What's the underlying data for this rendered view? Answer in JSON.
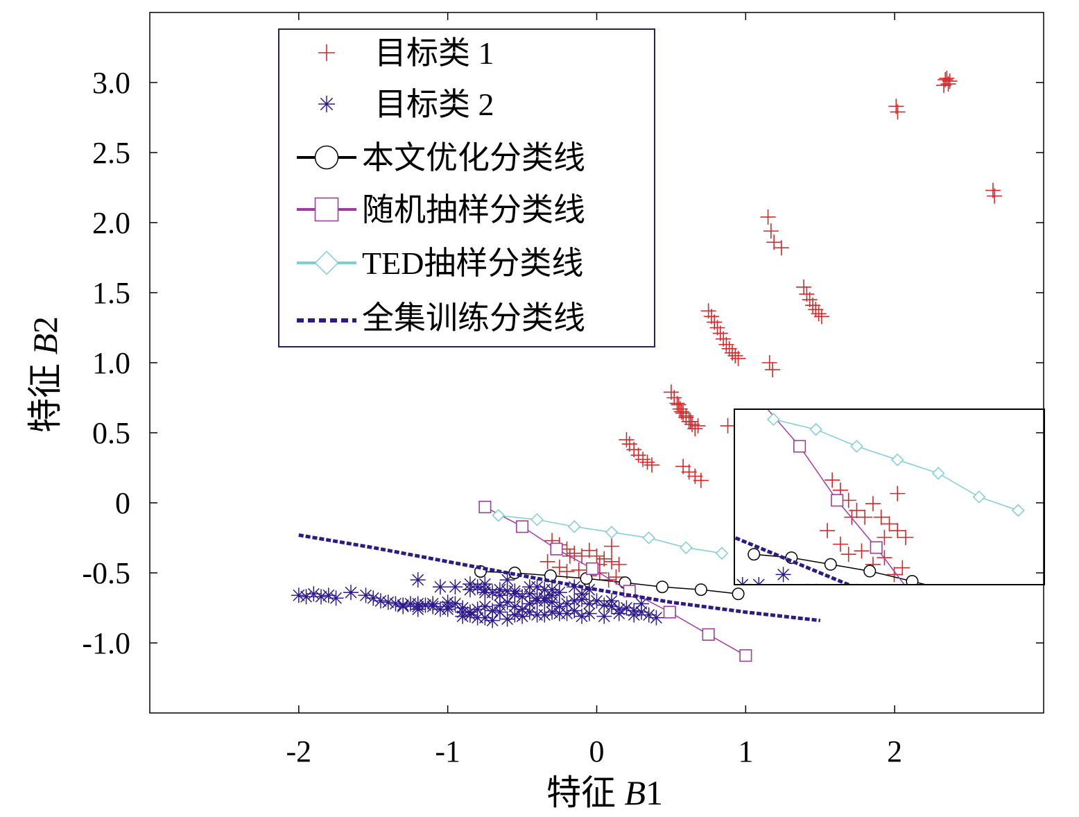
{
  "chart_data": {
    "type": "scatter",
    "title": "",
    "xlabel": {
      "prefix": "特征 ",
      "var": "B",
      "sub": "1"
    },
    "ylabel": {
      "prefix": "特征 ",
      "var": "B",
      "sub": "2"
    },
    "xlim": [
      -3.0,
      3.0
    ],
    "ylim": [
      -1.5,
      3.5
    ],
    "xticks": [
      {
        "value": -2,
        "label": "-2"
      },
      {
        "value": -1,
        "label": "-1"
      },
      {
        "value": 0,
        "label": "0"
      },
      {
        "value": 1,
        "label": "1"
      },
      {
        "value": 2,
        "label": "2"
      }
    ],
    "yticks": [
      {
        "value": -1.0,
        "label": "-1.0"
      },
      {
        "value": -0.5,
        "label": "-0.5"
      },
      {
        "value": 0,
        "label": "0"
      },
      {
        "value": 0.5,
        "label": "0.5"
      },
      {
        "value": 1.0,
        "label": "1.0"
      },
      {
        "value": 1.5,
        "label": "1.5"
      },
      {
        "value": 2.0,
        "label": "2.0"
      },
      {
        "value": 2.5,
        "label": "2.5"
      },
      {
        "value": 3.0,
        "label": "3.0"
      }
    ],
    "grid": false,
    "legend_position": "top-left",
    "legend": [
      {
        "label": "目标类 1",
        "marker": "plus",
        "color": "#d62728"
      },
      {
        "label": "目标类 2",
        "marker": "star",
        "color": "#2e1a87"
      },
      {
        "label": "本文优化分类线",
        "marker": "circle",
        "color": "#000000"
      },
      {
        "label": "随机抽样分类线",
        "marker": "square",
        "color": "#a23aa6"
      },
      {
        "label": "TED抽样分类线",
        "marker": "diamond",
        "color": "#7ecfd0"
      },
      {
        "label": "全集训练分类线",
        "marker": "dashed",
        "color": "#2e1a87"
      }
    ],
    "series": [
      {
        "name": "目标类 1",
        "kind": "scatter",
        "marker": "plus",
        "color": "#d62728",
        "x": [
          2.35,
          2.37,
          2.36,
          2.34,
          2.33,
          2.01,
          2.02,
          2.66,
          2.67,
          1.15,
          1.17,
          1.19,
          1.24,
          1.39,
          1.41,
          1.43,
          1.45,
          1.47,
          1.49,
          1.51,
          0.75,
          0.77,
          0.79,
          0.81,
          0.83,
          0.85,
          0.87,
          0.89,
          0.91,
          0.93,
          0.95,
          1.16,
          1.18,
          0.5,
          0.52,
          0.54,
          0.56,
          0.58,
          0.6,
          0.62,
          0.64,
          0.66,
          0.55,
          0.57,
          0.6,
          0.63,
          0.68,
          0.2,
          0.22,
          0.25,
          0.28,
          0.31,
          0.34,
          0.37,
          0.58,
          0.62,
          0.66,
          0.7,
          0.88,
          -0.3,
          -0.25,
          -0.2,
          -0.15,
          -0.1,
          -0.05,
          0.0,
          0.05,
          0.1,
          0.15,
          -0.25,
          -0.2,
          -0.12,
          -0.05,
          0.02,
          0.08,
          0.13,
          -0.33,
          -0.18,
          0.02,
          0.1
        ],
        "y": [
          3.03,
          3.01,
          2.99,
          3.02,
          2.98,
          2.83,
          2.79,
          2.23,
          2.19,
          2.04,
          1.94,
          1.86,
          1.82,
          1.54,
          1.49,
          1.45,
          1.41,
          1.38,
          1.35,
          1.33,
          1.37,
          1.33,
          1.29,
          1.25,
          1.21,
          1.17,
          1.13,
          1.1,
          1.07,
          1.05,
          1.03,
          1.0,
          0.95,
          0.79,
          0.75,
          0.71,
          0.67,
          0.64,
          0.61,
          0.58,
          0.56,
          0.53,
          0.7,
          0.65,
          0.62,
          0.58,
          0.55,
          0.45,
          0.42,
          0.38,
          0.34,
          0.31,
          0.29,
          0.27,
          0.26,
          0.22,
          0.19,
          0.16,
          0.55,
          -0.27,
          -0.3,
          -0.33,
          -0.36,
          -0.38,
          -0.34,
          -0.38,
          -0.4,
          -0.42,
          -0.44,
          -0.46,
          -0.49,
          -0.48,
          -0.52,
          -0.5,
          -0.55,
          -0.53,
          -0.42,
          -0.38,
          -0.44,
          -0.31
        ]
      },
      {
        "name": "目标类 2",
        "kind": "scatter",
        "marker": "star",
        "color": "#2e1a87",
        "x": [
          -2.0,
          -1.95,
          -1.9,
          -1.85,
          -1.8,
          -1.75,
          -1.65,
          -1.55,
          -1.5,
          -1.45,
          -1.4,
          -1.35,
          -1.3,
          -1.25,
          -1.2,
          -1.15,
          -1.1,
          -1.05,
          -1.0,
          -0.95,
          -0.9,
          -0.85,
          -0.8,
          -0.75,
          -0.7,
          -0.65,
          -0.6,
          -0.55,
          -0.5,
          -0.45,
          -0.4,
          -0.35,
          -0.3,
          -0.25,
          -0.2,
          -0.15,
          -0.1,
          -0.05,
          0.0,
          0.05,
          0.1,
          0.15,
          0.2,
          0.25,
          0.3,
          0.35,
          0.4,
          -1.3,
          -1.2,
          -1.1,
          -1.0,
          -0.9,
          -0.85,
          -0.75,
          -0.65,
          -0.55,
          -0.45,
          -0.35,
          -0.25,
          -0.15,
          -0.05,
          0.05,
          0.15,
          0.25,
          -1.2,
          -1.0,
          -0.9,
          -0.8,
          -0.7,
          -0.6,
          -0.5,
          -0.4,
          -0.3,
          -0.2,
          -0.1,
          -0.95,
          -0.85,
          -0.75,
          -0.65,
          -0.55,
          -0.45,
          -0.35,
          -0.25,
          -0.15,
          -0.05,
          -0.85,
          -0.8,
          -0.75,
          -0.7,
          -0.65,
          -0.6,
          -0.55,
          -0.5,
          -0.45,
          -0.4,
          -0.35,
          -0.3,
          -1.2,
          -1.05,
          -0.75,
          -0.6,
          -0.4,
          -0.3,
          -0.1,
          0.1,
          0.3
        ],
        "y": [
          -0.66,
          -0.67,
          -0.65,
          -0.67,
          -0.66,
          -0.68,
          -0.64,
          -0.66,
          -0.68,
          -0.7,
          -0.71,
          -0.72,
          -0.73,
          -0.72,
          -0.74,
          -0.73,
          -0.72,
          -0.76,
          -0.74,
          -0.72,
          -0.75,
          -0.78,
          -0.76,
          -0.74,
          -0.77,
          -0.73,
          -0.71,
          -0.74,
          -0.76,
          -0.72,
          -0.7,
          -0.68,
          -0.71,
          -0.74,
          -0.72,
          -0.7,
          -0.69,
          -0.72,
          -0.7,
          -0.73,
          -0.74,
          -0.76,
          -0.75,
          -0.77,
          -0.78,
          -0.8,
          -0.82,
          -0.74,
          -0.72,
          -0.74,
          -0.71,
          -0.78,
          -0.8,
          -0.82,
          -0.78,
          -0.8,
          -0.78,
          -0.8,
          -0.79,
          -0.77,
          -0.79,
          -0.81,
          -0.79,
          -0.8,
          -0.76,
          -0.76,
          -0.81,
          -0.82,
          -0.84,
          -0.83,
          -0.81,
          -0.8,
          -0.78,
          -0.79,
          -0.81,
          -0.6,
          -0.62,
          -0.64,
          -0.62,
          -0.63,
          -0.6,
          -0.62,
          -0.64,
          -0.6,
          -0.62,
          -0.58,
          -0.6,
          -0.62,
          -0.64,
          -0.66,
          -0.63,
          -0.65,
          -0.67,
          -0.65,
          -0.68,
          -0.7,
          -0.66,
          -0.55,
          -0.6,
          -0.58,
          -0.55,
          -0.6,
          -0.62,
          -0.65,
          -0.7,
          -0.72
        ]
      },
      {
        "name": "本文优化分类线",
        "kind": "line",
        "marker": "circle",
        "color": "#000000",
        "x": [
          -0.78,
          -0.55,
          -0.31,
          -0.07,
          0.19,
          0.44,
          0.7,
          0.95
        ],
        "y": [
          -0.49,
          -0.5,
          -0.52,
          -0.54,
          -0.57,
          -0.6,
          -0.62,
          -0.65
        ]
      },
      {
        "name": "随机抽样分类线",
        "kind": "line",
        "marker": "square",
        "color": "#a23aa6",
        "x": [
          -0.75,
          -0.5,
          -0.27,
          -0.03,
          0.22,
          0.49,
          0.75,
          1.0
        ],
        "y": [
          -0.03,
          -0.17,
          -0.33,
          -0.47,
          -0.63,
          -0.78,
          -0.94,
          -1.09
        ]
      },
      {
        "name": "TED抽样分类线",
        "kind": "line",
        "marker": "diamond",
        "color": "#7ecfd0",
        "x": [
          -0.66,
          -0.4,
          -0.15,
          0.1,
          0.35,
          0.6,
          0.84
        ],
        "y": [
          -0.09,
          -0.12,
          -0.17,
          -0.21,
          -0.25,
          -0.32,
          -0.36
        ]
      },
      {
        "name": "全集训练分类线",
        "kind": "line",
        "marker": "dashed",
        "color": "#2e1a87",
        "x": [
          -2.0,
          -1.5,
          -1.0,
          -0.5,
          0.0,
          0.5,
          1.0,
          1.5
        ],
        "y": [
          -0.23,
          -0.32,
          -0.42,
          -0.52,
          -0.62,
          -0.71,
          -0.78,
          -0.84
        ]
      }
    ],
    "inset": {
      "type": "scatter",
      "description_of": "zoomed view of the boundary region",
      "xlim": [
        -0.9,
        1.0
      ],
      "ylim": [
        -0.58,
        -0.06
      ]
    }
  }
}
